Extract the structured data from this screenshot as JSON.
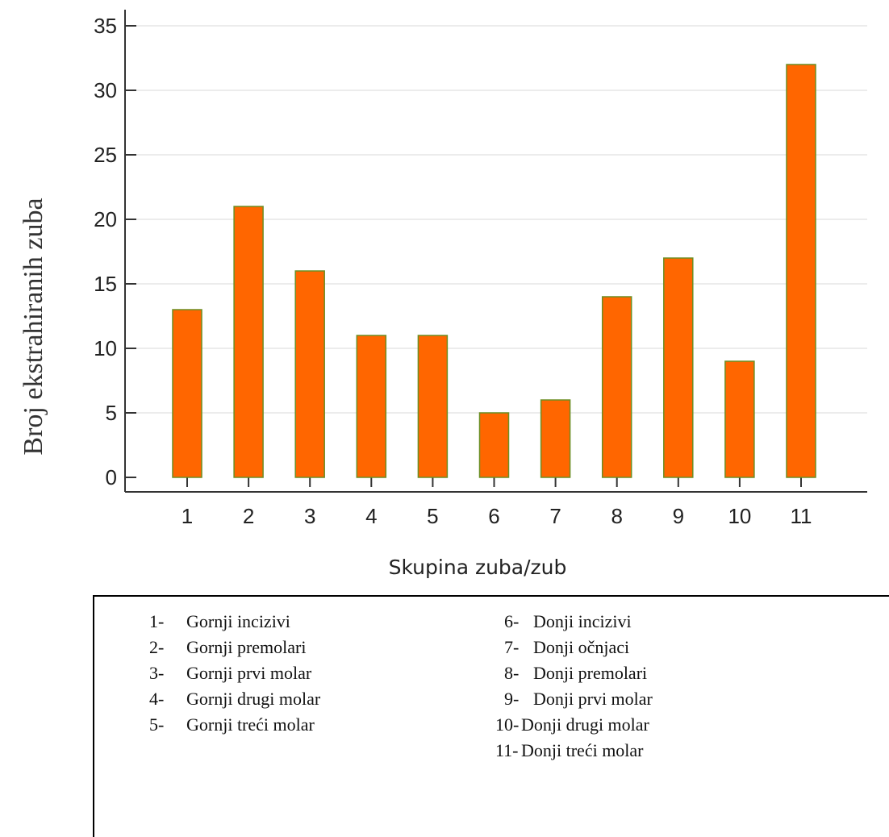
{
  "chart_data": {
    "type": "bar",
    "categories": [
      "1",
      "2",
      "3",
      "4",
      "5",
      "6",
      "7",
      "8",
      "9",
      "10",
      "11"
    ],
    "values": [
      13,
      21,
      16,
      11,
      11,
      5,
      6,
      14,
      17,
      9,
      32
    ],
    "title": "",
    "xlabel": "Skupina zuba/zub",
    "ylabel": "Broj ekstrahiranih zuba",
    "ylim": [
      0,
      35
    ],
    "yticks": [
      0,
      5,
      10,
      15,
      20,
      25,
      30,
      35
    ],
    "grid": true,
    "colors": {
      "bar_fill": "#FF6600",
      "bar_stroke": "#6B8E23",
      "grid": "#E6E6E6",
      "axis": "#333333"
    }
  },
  "legend": {
    "left_items": [
      {
        "num": "1-",
        "label": "Gornji incizivi"
      },
      {
        "num": "2-",
        "label": "Gornji premolari"
      },
      {
        "num": "3-",
        "label": "Gornji prvi molar"
      },
      {
        "num": "4-",
        "label": "Gornji drugi molar"
      },
      {
        "num": "5-",
        "label": "Gornji treći molar"
      }
    ],
    "right_items": [
      {
        "num": "6-",
        "label": "Donji incizivi"
      },
      {
        "num": "7-",
        "label": "Donji očnjaci"
      },
      {
        "num": "8-",
        "label": "Donji premolari"
      },
      {
        "num": "9-",
        "label": "Donji prvi molar"
      },
      {
        "num": "10-",
        "label": "Donji drugi molar"
      },
      {
        "num": "11-",
        "label": "Donji treći molar"
      }
    ]
  }
}
